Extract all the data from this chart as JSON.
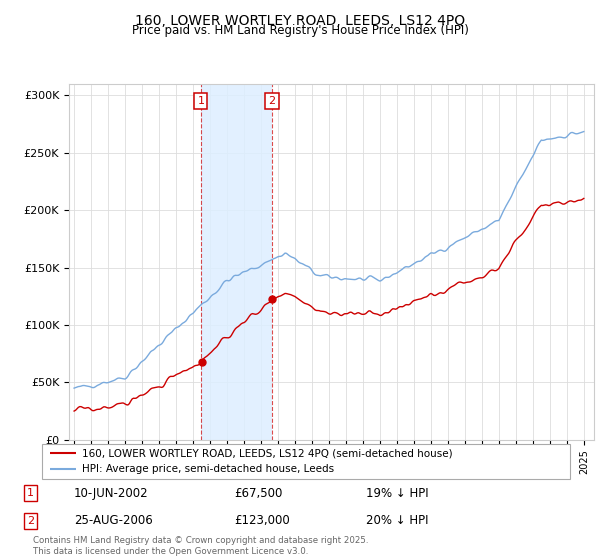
{
  "title": "160, LOWER WORTLEY ROAD, LEEDS, LS12 4PQ",
  "subtitle": "Price paid vs. HM Land Registry's House Price Index (HPI)",
  "legend_property": "160, LOWER WORTLEY ROAD, LEEDS, LS12 4PQ (semi-detached house)",
  "legend_hpi": "HPI: Average price, semi-detached house, Leeds",
  "footer": "Contains HM Land Registry data © Crown copyright and database right 2025.\nThis data is licensed under the Open Government Licence v3.0.",
  "ytick_labels": [
    "£0",
    "£50K",
    "£100K",
    "£150K",
    "£200K",
    "£250K",
    "£300K"
  ],
  "ytick_values": [
    0,
    50000,
    100000,
    150000,
    200000,
    250000,
    300000
  ],
  "ylim": [
    0,
    310000
  ],
  "sale1_date": "10-JUN-2002",
  "sale1_price": 67500,
  "sale1_note": "19% ↓ HPI",
  "sale1_year": 2002.46,
  "sale2_date": "25-AUG-2006",
  "sale2_price": 123000,
  "sale2_note": "20% ↓ HPI",
  "sale2_year": 2006.65,
  "property_color": "#cc0000",
  "hpi_color": "#7aaadd",
  "shade_color": "#ddeeff",
  "annotation_box_color": "#cc0000"
}
